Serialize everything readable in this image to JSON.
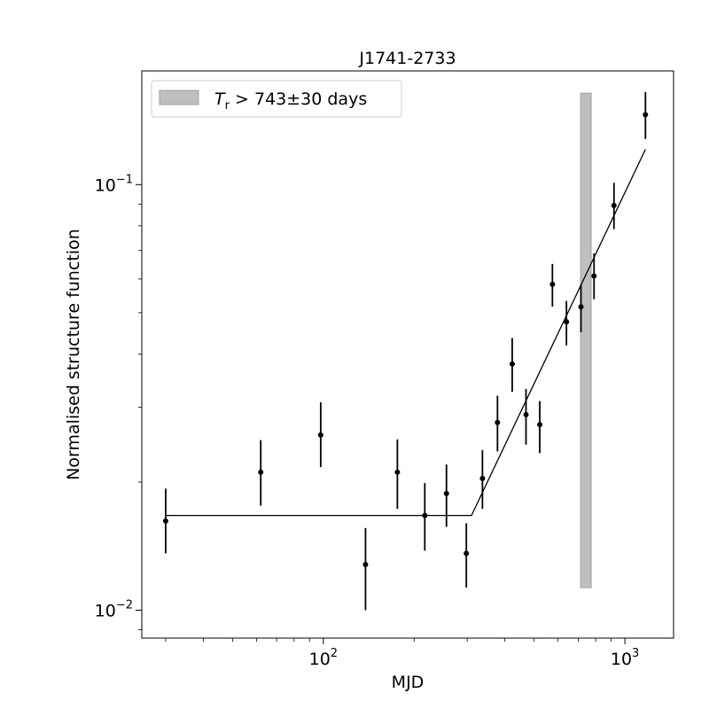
{
  "chart_data": {
    "type": "scatter",
    "title": "J1741-2733",
    "xlabel": "MJD",
    "ylabel": "Normalised structure function",
    "xscale": "log",
    "yscale": "log",
    "xlim": [
      25,
      1450
    ],
    "ylim": [
      0.0086,
      0.185
    ],
    "x_major_ticks": [
      {
        "value": 100,
        "base": "10",
        "exp": "2"
      },
      {
        "value": 1000,
        "base": "10",
        "exp": "3"
      }
    ],
    "y_major_ticks": [
      {
        "value": 0.01,
        "base": "10",
        "exp": "−2"
      },
      {
        "value": 0.1,
        "base": "10",
        "exp": "−1"
      }
    ],
    "grid": false,
    "legend": {
      "position": "top-left",
      "entries": [
        {
          "symbol_text": "T",
          "subscript": "r",
          "text": " > 743±30 days",
          "color": "#bfbfbf"
        }
      ]
    },
    "series": [
      {
        "marker": "dot",
        "color": "#000000",
        "points": [
          {
            "x": 30,
            "y": 0.0162,
            "ylo": 0.0136,
            "yhi": 0.0193
          },
          {
            "x": 62,
            "y": 0.0211,
            "ylo": 0.0176,
            "yhi": 0.0251
          },
          {
            "x": 98,
            "y": 0.0258,
            "ylo": 0.0217,
            "yhi": 0.0308
          },
          {
            "x": 138,
            "y": 0.0128,
            "ylo": 0.01,
            "yhi": 0.0156
          },
          {
            "x": 176,
            "y": 0.0211,
            "ylo": 0.0173,
            "yhi": 0.0252
          },
          {
            "x": 217,
            "y": 0.0167,
            "ylo": 0.0138,
            "yhi": 0.0199
          },
          {
            "x": 256,
            "y": 0.0188,
            "ylo": 0.0157,
            "yhi": 0.022
          },
          {
            "x": 298,
            "y": 0.0136,
            "ylo": 0.0113,
            "yhi": 0.016
          },
          {
            "x": 337,
            "y": 0.0204,
            "ylo": 0.0173,
            "yhi": 0.0238
          },
          {
            "x": 378,
            "y": 0.0276,
            "ylo": 0.0236,
            "yhi": 0.0319
          },
          {
            "x": 423,
            "y": 0.0379,
            "ylo": 0.0326,
            "yhi": 0.0436
          },
          {
            "x": 470,
            "y": 0.0288,
            "ylo": 0.0245,
            "yhi": 0.0331
          },
          {
            "x": 522,
            "y": 0.0273,
            "ylo": 0.0234,
            "yhi": 0.031
          },
          {
            "x": 575,
            "y": 0.0583,
            "ylo": 0.0517,
            "yhi": 0.0651
          },
          {
            "x": 640,
            "y": 0.0476,
            "ylo": 0.0419,
            "yhi": 0.0533
          },
          {
            "x": 715,
            "y": 0.0516,
            "ylo": 0.045,
            "yhi": 0.0582
          },
          {
            "x": 790,
            "y": 0.061,
            "ylo": 0.0538,
            "yhi": 0.0689
          },
          {
            "x": 920,
            "y": 0.0893,
            "ylo": 0.0786,
            "yhi": 0.101
          },
          {
            "x": 1170,
            "y": 0.146,
            "ylo": 0.128,
            "yhi": 0.165
          }
        ]
      },
      {
        "kind": "fit-line",
        "color": "#000000",
        "points": [
          {
            "x": 30,
            "y": 0.0167
          },
          {
            "x": 310,
            "y": 0.0167
          },
          {
            "x": 1170,
            "y": 0.121
          }
        ]
      }
    ],
    "shaded_band": {
      "x_from": 713,
      "x_to": 773,
      "y_from": 0.0113,
      "y_to": 0.164,
      "color": "#bfbfbf"
    }
  }
}
